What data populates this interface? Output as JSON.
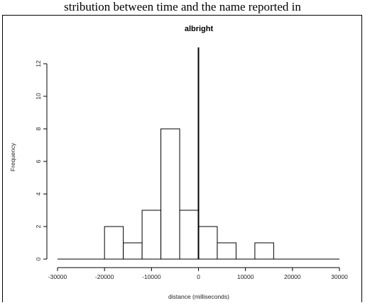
{
  "caption": "stribution between time and the name reported in",
  "chart_data": {
    "type": "bar",
    "title": "albright",
    "xlabel": "distance (milliseconds)",
    "ylabel": "Frequency",
    "xlim": [
      -30000,
      30000
    ],
    "ylim": [
      0,
      13
    ],
    "x_ticks": [
      "-30000",
      "-20000",
      "-10000",
      "0",
      "10000",
      "20000",
      "30000"
    ],
    "x_tick_values": [
      -30000,
      -20000,
      -10000,
      0,
      10000,
      20000,
      30000
    ],
    "y_ticks": [
      "0",
      "2",
      "4",
      "6",
      "8",
      "10",
      "12"
    ],
    "y_tick_values": [
      0,
      2,
      4,
      6,
      8,
      10,
      12
    ],
    "bins": [
      {
        "start": -20000,
        "end": -16000,
        "count": 2
      },
      {
        "start": -16000,
        "end": -12000,
        "count": 1
      },
      {
        "start": -12000,
        "end": -8000,
        "count": 3
      },
      {
        "start": -8000,
        "end": -4000,
        "count": 8
      },
      {
        "start": -4000,
        "end": 0,
        "count": 3
      },
      {
        "start": 0,
        "end": 4000,
        "count": 2
      },
      {
        "start": 4000,
        "end": 8000,
        "count": 1
      },
      {
        "start": 8000,
        "end": 12000,
        "count": 0
      },
      {
        "start": 12000,
        "end": 16000,
        "count": 1
      }
    ],
    "reference_line": {
      "x": 0,
      "y_top": 13
    },
    "bar_fill": "#ffffff",
    "bar_stroke": "#000000",
    "grid": false
  }
}
